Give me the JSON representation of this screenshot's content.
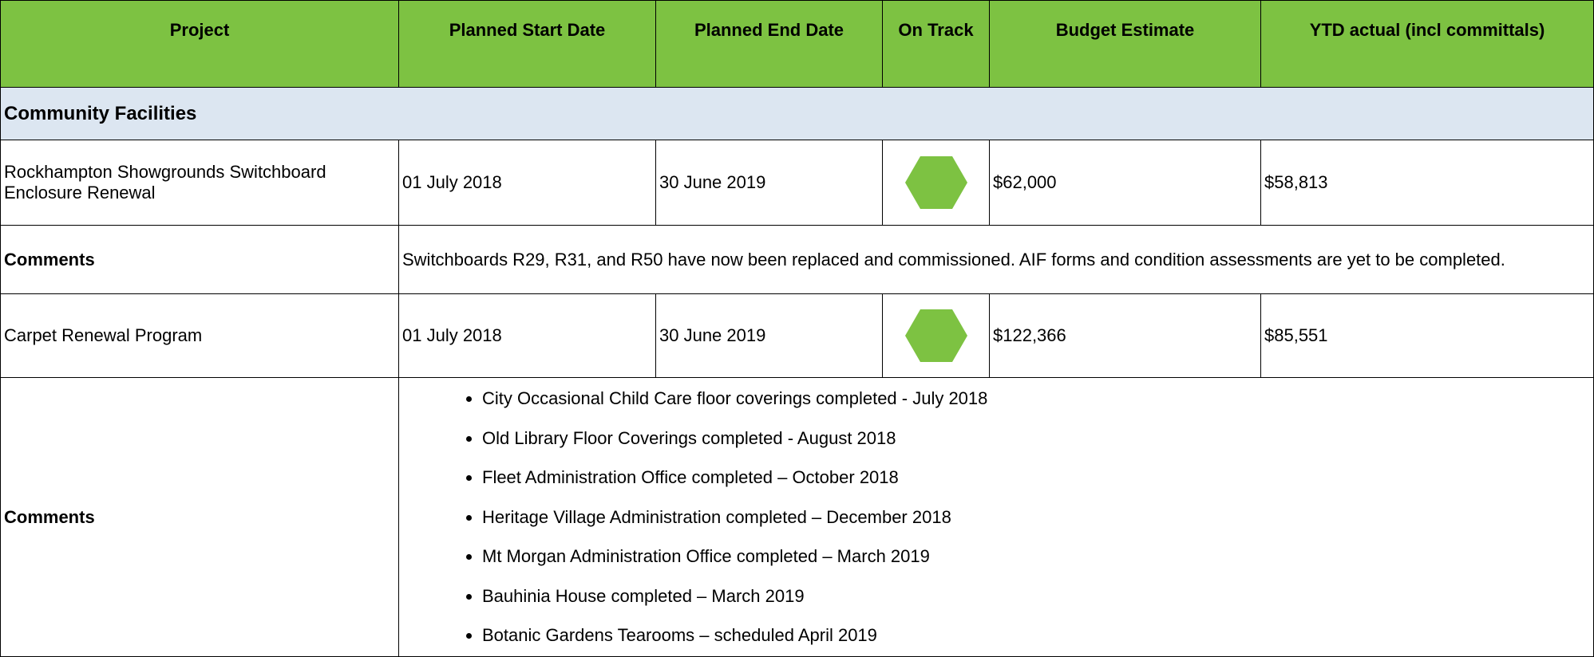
{
  "table": {
    "columns": [
      "Project",
      "Planned Start Date",
      "Planned End Date",
      "On Track",
      "Budget Estimate",
      "YTD actual (incl committals)"
    ],
    "section": "Community Facilities",
    "rows": [
      {
        "project": "Rockhampton Showgrounds Switchboard Enclosure Renewal",
        "start": "01 July 2018",
        "end": "30 June 2019",
        "budget": "$62,000",
        "ytd": "$58,813",
        "comments_label": "Comments",
        "comments": "Switchboards R29, R31, and R50 have now been replaced and commissioned. AIF forms and condition assessments are yet to be completed."
      },
      {
        "project": "Carpet Renewal Program",
        "start": "01 July 2018",
        "end": "30 June 2019",
        "budget": "$122,366",
        "ytd": "$85,551",
        "comments_label": "Comments",
        "comments_list": [
          "City Occasional Child Care floor coverings completed - July 2018",
          "Old Library Floor Coverings completed - August 2018",
          "Fleet Administration Office completed – October 2018",
          "Heritage Village Administration completed – December 2018",
          "Mt Morgan Administration Office completed – March 2019",
          "Bauhinia House completed – March 2019",
          "Botanic Gardens Tearooms – scheduled April 2019"
        ]
      }
    ]
  }
}
